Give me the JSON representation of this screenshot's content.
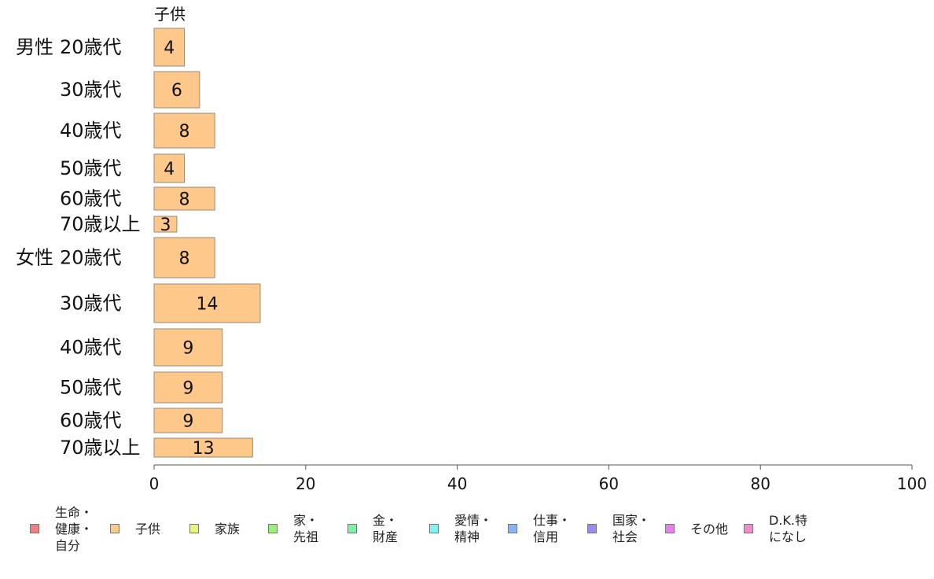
{
  "chart_data": {
    "type": "bar",
    "orientation": "horizontal",
    "panel_title": "子供",
    "groups": [
      {
        "label": "男性",
        "categories": [
          "20歳代",
          "30歳代",
          "40歳代",
          "50歳代",
          "60歳代",
          "70歳以上"
        ],
        "values": [
          4,
          6,
          8,
          4,
          8,
          3
        ]
      },
      {
        "label": "女性",
        "categories": [
          "20歳代",
          "30歳代",
          "40歳代",
          "50歳代",
          "60歳代",
          "70歳以上"
        ],
        "values": [
          8,
          14,
          9,
          9,
          9,
          13
        ]
      }
    ],
    "xlim": [
      0,
      100
    ],
    "xticks": [
      "0",
      "20",
      "40",
      "60",
      "80",
      "100"
    ],
    "bar_color": "#fdc88a",
    "legend": [
      {
        "label": "生命・\n健康・\n自分",
        "color": "#f08080"
      },
      {
        "label": "子供",
        "color": "#fdc88a"
      },
      {
        "label": "家族",
        "color": "#e8f57a"
      },
      {
        "label": "家・\n先祖",
        "color": "#9cf07a"
      },
      {
        "label": "金・\n財産",
        "color": "#7ef0a8"
      },
      {
        "label": "愛情・\n精神",
        "color": "#7ff5f5"
      },
      {
        "label": "仕事・\n信用",
        "color": "#8ab4f8"
      },
      {
        "label": "国家・\n社会",
        "color": "#9a8cf0"
      },
      {
        "label": "その他",
        "color": "#e87ff0"
      },
      {
        "label": "D.K.特\nになし",
        "color": "#f08cc8"
      }
    ]
  }
}
